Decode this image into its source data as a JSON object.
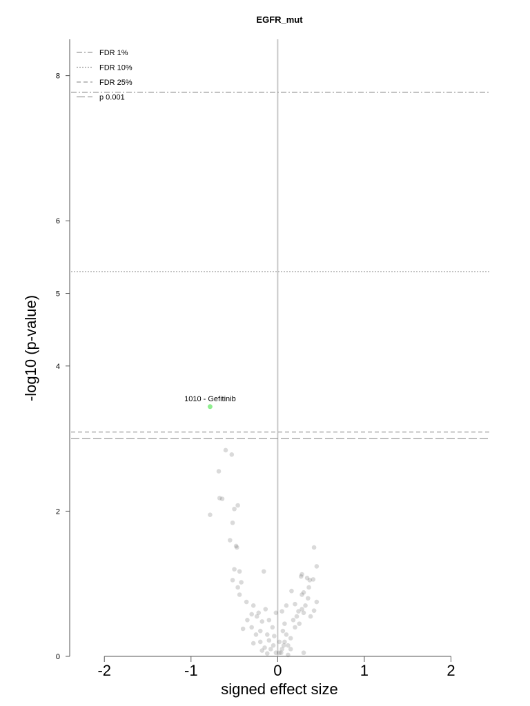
{
  "chart_data": {
    "type": "scatter",
    "title": "EGFR_mut",
    "xlabel": "signed effect size",
    "ylabel": "-log10 (p-value)",
    "xlim": [
      -2.4,
      2.45
    ],
    "ylim": [
      0,
      8.5
    ],
    "x_ticks": [
      -2,
      -1,
      0,
      1,
      2
    ],
    "x_tick_labels": [
      "-2",
      "-1",
      "0",
      "1",
      "2"
    ],
    "y_ticks": [
      0,
      2,
      4,
      5,
      6,
      8
    ],
    "y_tick_labels": [
      "0",
      "2",
      "4",
      "5",
      "6",
      "8"
    ],
    "grid": false,
    "legend_position": "top-left",
    "thresholds": [
      {
        "label": "FDR 1%",
        "y": 7.77,
        "style": "dashdot"
      },
      {
        "label": "FDR 10%",
        "y": 5.3,
        "style": "dotted"
      },
      {
        "label": "FDR 25%",
        "y": 3.09,
        "style": "dashed"
      },
      {
        "label": "p 0.001",
        "y": 3.0,
        "style": "longdash"
      }
    ],
    "highlight": {
      "label": "1010 - Gefitinib",
      "x": -0.78,
      "y": 3.44,
      "color": "#90EE90"
    },
    "point_color": "#555555",
    "vline_x": 0,
    "points": [
      [
        -0.6,
        2.84
      ],
      [
        -0.53,
        2.78
      ],
      [
        -0.68,
        2.55
      ],
      [
        -0.67,
        2.18
      ],
      [
        -0.64,
        2.17
      ],
      [
        -0.78,
        1.95
      ],
      [
        -0.46,
        2.08
      ],
      [
        -0.5,
        2.03
      ],
      [
        -0.52,
        1.84
      ],
      [
        -0.55,
        1.6
      ],
      [
        -0.48,
        1.52
      ],
      [
        -0.47,
        1.5
      ],
      [
        -0.5,
        1.2
      ],
      [
        -0.44,
        1.17
      ],
      [
        -0.16,
        1.17
      ],
      [
        -0.52,
        1.05
      ],
      [
        -0.42,
        1.02
      ],
      [
        -0.46,
        0.95
      ],
      [
        -0.44,
        0.85
      ],
      [
        -0.36,
        0.75
      ],
      [
        -0.28,
        0.7
      ],
      [
        -0.3,
        0.58
      ],
      [
        -0.22,
        0.6
      ],
      [
        -0.24,
        0.55
      ],
      [
        -0.35,
        0.5
      ],
      [
        -0.18,
        0.48
      ],
      [
        -0.3,
        0.4
      ],
      [
        -0.4,
        0.38
      ],
      [
        -0.2,
        0.35
      ],
      [
        -0.12,
        0.3
      ],
      [
        -0.25,
        0.3
      ],
      [
        -0.1,
        0.22
      ],
      [
        -0.2,
        0.2
      ],
      [
        -0.05,
        0.15
      ],
      [
        -0.15,
        0.12
      ],
      [
        -0.08,
        0.1
      ],
      [
        -0.02,
        0.05
      ],
      [
        -0.12,
        0.04
      ],
      [
        -0.18,
        0.08
      ],
      [
        -0.28,
        0.18
      ],
      [
        -0.04,
        0.28
      ],
      [
        -0.06,
        0.4
      ],
      [
        -0.1,
        0.5
      ],
      [
        -0.02,
        0.6
      ],
      [
        -0.14,
        0.65
      ],
      [
        0.02,
        0.05
      ],
      [
        0.05,
        0.1
      ],
      [
        0.08,
        0.2
      ],
      [
        0.12,
        0.15
      ],
      [
        0.1,
        0.3
      ],
      [
        0.15,
        0.25
      ],
      [
        0.06,
        0.35
      ],
      [
        0.2,
        0.4
      ],
      [
        0.25,
        0.45
      ],
      [
        0.18,
        0.5
      ],
      [
        0.22,
        0.55
      ],
      [
        0.3,
        0.6
      ],
      [
        0.24,
        0.62
      ],
      [
        0.28,
        0.65
      ],
      [
        0.32,
        0.7
      ],
      [
        0.38,
        0.55
      ],
      [
        0.35,
        0.8
      ],
      [
        0.28,
        0.85
      ],
      [
        0.3,
        0.88
      ],
      [
        0.45,
        0.75
      ],
      [
        0.42,
        0.63
      ],
      [
        0.36,
        0.95
      ],
      [
        0.37,
        1.05
      ],
      [
        0.34,
        1.08
      ],
      [
        0.27,
        1.1
      ],
      [
        0.28,
        1.13
      ],
      [
        0.41,
        1.06
      ],
      [
        0.45,
        1.24
      ],
      [
        0.42,
        1.5
      ],
      [
        0.16,
        0.9
      ],
      [
        0.2,
        0.72
      ],
      [
        0.08,
        0.45
      ],
      [
        0.05,
        0.62
      ],
      [
        0.1,
        0.7
      ],
      [
        0.04,
        0.05
      ],
      [
        0.15,
        0.1
      ],
      [
        0.07,
        0.15
      ],
      [
        0.12,
        0.02
      ],
      [
        0.3,
        0.05
      ],
      [
        0.02,
        0.2
      ]
    ]
  }
}
